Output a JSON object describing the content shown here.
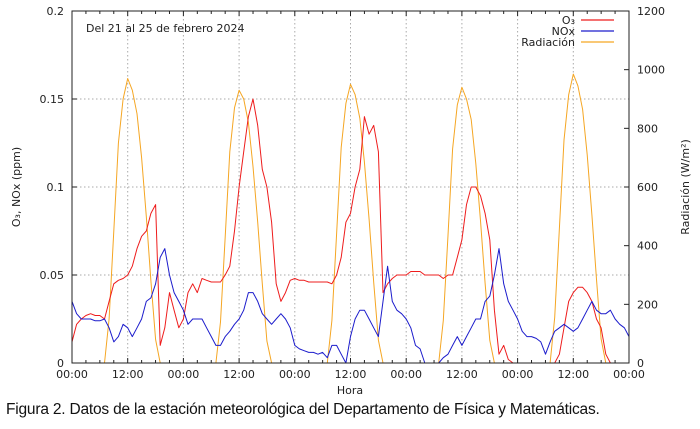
{
  "caption": "Figura 2. Datos de la estación meteorológica del Departamento de Física y Matemáticas.",
  "chart_data": {
    "type": "line",
    "annotation": "Del 21 al 25 de febrero 2024",
    "xlabel": "Hora",
    "ylabel": "O₃, NOx (ppm)",
    "y2label": "Radiación (W/m²)",
    "xlim": [
      0,
      120
    ],
    "ylim": [
      0,
      0.2
    ],
    "y2lim": [
      0,
      1200
    ],
    "x_ticks": [
      0,
      12,
      24,
      36,
      48,
      60,
      72,
      84,
      96,
      108,
      120
    ],
    "x_tick_labels": [
      "00:00",
      "12:00",
      "00:00",
      "12:00",
      "00:00",
      "12:00",
      "00:00",
      "12:00",
      "00:00",
      "12:00",
      "00:00"
    ],
    "y_ticks": [
      0,
      0.05,
      0.1,
      0.15,
      0.2
    ],
    "y_tick_labels": [
      "0",
      "0.05",
      "0.1",
      "0.15",
      "0.2"
    ],
    "y2_ticks": [
      0,
      200,
      400,
      600,
      800,
      1000,
      1200
    ],
    "y2_tick_labels": [
      "0",
      "200",
      "400",
      "600",
      "800",
      "1000",
      "1200"
    ],
    "grid": true,
    "legend_position": "top-right",
    "x_hours": "hourly, 0 to 120",
    "series": [
      {
        "name": "O₃",
        "axis": "left",
        "color": "#ee1c1c",
        "values": [
          0.012,
          0.022,
          0.025,
          0.027,
          0.028,
          0.027,
          0.027,
          0.025,
          0.035,
          0.045,
          0.047,
          0.048,
          0.05,
          0.055,
          0.065,
          0.072,
          0.075,
          0.085,
          0.09,
          0.01,
          0.02,
          0.04,
          0.03,
          0.02,
          0.025,
          0.04,
          0.045,
          0.04,
          0.048,
          0.047,
          0.046,
          0.046,
          0.046,
          0.05,
          0.055,
          0.075,
          0.1,
          0.12,
          0.14,
          0.15,
          0.135,
          0.11,
          0.1,
          0.08,
          0.045,
          0.035,
          0.04,
          0.047,
          0.048,
          0.047,
          0.047,
          0.046,
          0.046,
          0.046,
          0.046,
          0.046,
          0.045,
          0.05,
          0.06,
          0.08,
          0.085,
          0.1,
          0.11,
          0.14,
          0.13,
          0.135,
          0.12,
          0.04,
          0.045,
          0.048,
          0.05,
          0.05,
          0.05,
          0.052,
          0.052,
          0.052,
          0.05,
          0.05,
          0.05,
          0.05,
          0.048,
          0.05,
          0.05,
          0.06,
          0.07,
          0.09,
          0.1,
          0.1,
          0.095,
          0.085,
          0.07,
          0.03,
          0.005,
          0.01,
          0.002,
          0,
          0,
          0,
          0,
          0,
          0,
          0,
          0,
          0,
          0,
          0.005,
          0.02,
          0.035,
          0.04,
          0.043,
          0.043,
          0.04,
          0.035,
          0.025,
          0.02,
          0.005,
          0,
          0,
          0,
          0,
          0
        ]
      },
      {
        "name": "NOx",
        "axis": "left",
        "color": "#1c1ccc",
        "values": [
          0.035,
          0.028,
          0.025,
          0.025,
          0.025,
          0.024,
          0.024,
          0.025,
          0.02,
          0.012,
          0.015,
          0.022,
          0.02,
          0.015,
          0.02,
          0.025,
          0.035,
          0.037,
          0.045,
          0.06,
          0.065,
          0.05,
          0.04,
          0.035,
          0.03,
          0.022,
          0.025,
          0.025,
          0.025,
          0.02,
          0.015,
          0.01,
          0.01,
          0.015,
          0.018,
          0.022,
          0.025,
          0.03,
          0.04,
          0.04,
          0.035,
          0.028,
          0.025,
          0.022,
          0.025,
          0.028,
          0.025,
          0.02,
          0.01,
          0.008,
          0.007,
          0.006,
          0.006,
          0.005,
          0.006,
          0.003,
          0.01,
          0.01,
          0.005,
          0,
          0.015,
          0.025,
          0.03,
          0.03,
          0.025,
          0.02,
          0.015,
          0.035,
          0.055,
          0.035,
          0.03,
          0.028,
          0.025,
          0.02,
          0.01,
          0.008,
          0,
          0,
          0,
          0,
          0.003,
          0.005,
          0.01,
          0.015,
          0.01,
          0.015,
          0.02,
          0.025,
          0.025,
          0.035,
          0.038,
          0.05,
          0.065,
          0.045,
          0.035,
          0.03,
          0.025,
          0.018,
          0.015,
          0.015,
          0.014,
          0.012,
          0.005,
          0.012,
          0.018,
          0.02,
          0.022,
          0.02,
          0.018,
          0.02,
          0.025,
          0.03,
          0.035,
          0.03,
          0.028,
          0.028,
          0.03,
          0.025,
          0.022,
          0.02,
          0.015
        ]
      },
      {
        "name": "Radiación",
        "axis": "right",
        "color": "#f5a623",
        "values": [
          0,
          0,
          0,
          0,
          0,
          0,
          0,
          0,
          150,
          450,
          750,
          900,
          970,
          930,
          850,
          700,
          500,
          280,
          80,
          0,
          0,
          0,
          0,
          0,
          0,
          0,
          0,
          0,
          0,
          0,
          0,
          0,
          140,
          430,
          720,
          870,
          930,
          900,
          820,
          670,
          480,
          270,
          75,
          0,
          0,
          0,
          0,
          0,
          0,
          0,
          0,
          0,
          0,
          0,
          0,
          0,
          145,
          440,
          735,
          885,
          950,
          915,
          835,
          685,
          490,
          275,
          78,
          0,
          0,
          0,
          0,
          0,
          0,
          0,
          0,
          0,
          0,
          0,
          0,
          0,
          145,
          435,
          730,
          880,
          940,
          900,
          830,
          680,
          485,
          272,
          77,
          0,
          0,
          0,
          0,
          0,
          0,
          0,
          0,
          0,
          0,
          0,
          0,
          0,
          155,
          460,
          760,
          915,
          985,
          945,
          865,
          710,
          505,
          285,
          82,
          0,
          0,
          0,
          0,
          0,
          0
        ]
      }
    ]
  }
}
